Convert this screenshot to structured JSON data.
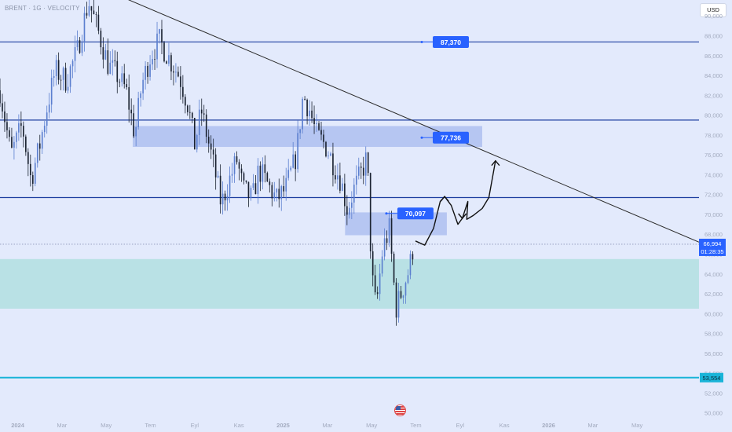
{
  "header": {
    "symbol": "BRENT · 1G · VELOCITY"
  },
  "currency": "USD",
  "colors": {
    "background": "#e3eafc",
    "level_line": "#1e3fa0",
    "zone_blue": "#aebff0",
    "zone_teal": "#b2dfe0",
    "support_cyan": "#19b4d8",
    "badge": "#2962ff",
    "candle": "#1a2230",
    "candle_alt": "#5b7fcf",
    "trendline": "#2a2a2a",
    "axis_text": "#a3abbf"
  },
  "chart_data": {
    "type": "candlestick",
    "title": "BRENT · 1G · VELOCITY",
    "y_axis": {
      "ticks": [
        "90,000",
        "88,000",
        "86,000",
        "84,000",
        "82,000",
        "80,000",
        "78,000",
        "76,000",
        "74,000",
        "72,000",
        "70,000",
        "68,000",
        "66,000",
        "64,000",
        "62,000",
        "60,000",
        "58,000",
        "56,000",
        "54,000",
        "52,000",
        "50,000"
      ],
      "ylim": [
        49.5,
        91.6
      ]
    },
    "x_axis": {
      "ticks": [
        "2024",
        "Mar",
        "May",
        "Tem",
        "Eyl",
        "Kas",
        "2025",
        "Mar",
        "May",
        "Tem",
        "Eyl",
        "Kas",
        "2026",
        "Mar",
        "May"
      ],
      "tick_months": [
        0,
        2,
        4,
        6,
        8,
        10,
        12,
        14,
        16,
        18,
        20,
        22,
        24,
        26,
        28
      ],
      "xlim": [
        -0.8,
        30.8
      ]
    },
    "price_path": [
      [
        -0.8,
        82.5
      ],
      [
        -0.3,
        76
      ],
      [
        0.2,
        79
      ],
      [
        0.6,
        73.5
      ],
      [
        1.0,
        77
      ],
      [
        1.3,
        80.5
      ],
      [
        1.7,
        84.5
      ],
      [
        2.2,
        83.5
      ],
      [
        2.7,
        86.5
      ],
      [
        3.2,
        91.5
      ],
      [
        3.7,
        88
      ],
      [
        4.1,
        85
      ],
      [
        4.5,
        84
      ],
      [
        4.9,
        82.5
      ],
      [
        5.3,
        78
      ],
      [
        5.6,
        83
      ],
      [
        6.0,
        86
      ],
      [
        6.4,
        87.5
      ],
      [
        6.9,
        85.5
      ],
      [
        7.3,
        84
      ],
      [
        7.7,
        81
      ],
      [
        8.0,
        77
      ],
      [
        8.3,
        80.5
      ],
      [
        8.6,
        77.5
      ],
      [
        8.9,
        74.5
      ],
      [
        9.2,
        71
      ],
      [
        9.5,
        73
      ],
      [
        9.9,
        75.5
      ],
      [
        10.2,
        72.5
      ],
      [
        10.6,
        71.5
      ],
      [
        10.9,
        74.5
      ],
      [
        11.3,
        73
      ],
      [
        11.7,
        71.5
      ],
      [
        12.1,
        72.5
      ],
      [
        12.4,
        74.5
      ],
      [
        12.6,
        76
      ],
      [
        12.9,
        82
      ],
      [
        13.2,
        80.5
      ],
      [
        13.5,
        78
      ],
      [
        13.9,
        77
      ],
      [
        14.3,
        75
      ],
      [
        14.6,
        73.5
      ],
      [
        14.9,
        70.5
      ],
      [
        15.2,
        72.5
      ],
      [
        15.5,
        74
      ],
      [
        15.8,
        75.8
      ],
      [
        16.0,
        64
      ],
      [
        16.2,
        60.5
      ],
      [
        16.5,
        66.5
      ],
      [
        16.8,
        68.5
      ],
      [
        17.1,
        60.5
      ],
      [
        17.4,
        62.5
      ],
      [
        17.7,
        64.5
      ],
      [
        17.9,
        67
      ]
    ],
    "levels": [
      {
        "name": "resistance-87370",
        "value": 87.37,
        "label": "87,370"
      },
      {
        "name": "resistance-79500",
        "value": 79.5
      },
      {
        "name": "level-71700",
        "value": 71.7
      }
    ],
    "zones": [
      {
        "name": "supply-zone",
        "top": 78.9,
        "bottom": 76.8,
        "x_start": 5.2,
        "x_end": 21.0
      },
      {
        "name": "resistance-zone",
        "top": 70.2,
        "bottom": 67.9,
        "x_start": 14.8,
        "x_end": 19.4
      },
      {
        "name": "demand-zone",
        "top": 65.5,
        "bottom": 60.5,
        "x_start": -0.8,
        "x_end": 30.8
      }
    ],
    "support_line": {
      "value": 53.554,
      "label": "53,554"
    },
    "trendline": {
      "start": [
        2.5,
        94.0
      ],
      "end": [
        30.8,
        67.2
      ]
    },
    "targets": [
      {
        "name": "target-87370",
        "value": 87.37,
        "label": "87,370",
        "x": 21.0
      },
      {
        "name": "target-77736",
        "value": 77.736,
        "label": "77,736",
        "x": 21.0
      },
      {
        "name": "target-70097",
        "value": 70.097,
        "label": "70,097",
        "x": 19.4
      }
    ],
    "current_price": {
      "value": 66.994,
      "label": "66,994",
      "countdown": "01:28:35"
    },
    "projection_path": [
      [
        18.0,
        67.3
      ],
      [
        18.4,
        66.9
      ],
      [
        18.8,
        68.6
      ],
      [
        19.1,
        71.3
      ],
      [
        19.3,
        71.8
      ],
      [
        19.6,
        70.9
      ],
      [
        19.9,
        69.0
      ],
      [
        20.1,
        69.6
      ],
      [
        20.35,
        71.3
      ],
      [
        20.3,
        69.5
      ],
      [
        20.6,
        69.9
      ],
      [
        21.0,
        70.6
      ],
      [
        21.3,
        71.7
      ],
      [
        21.6,
        75.4
      ]
    ]
  }
}
